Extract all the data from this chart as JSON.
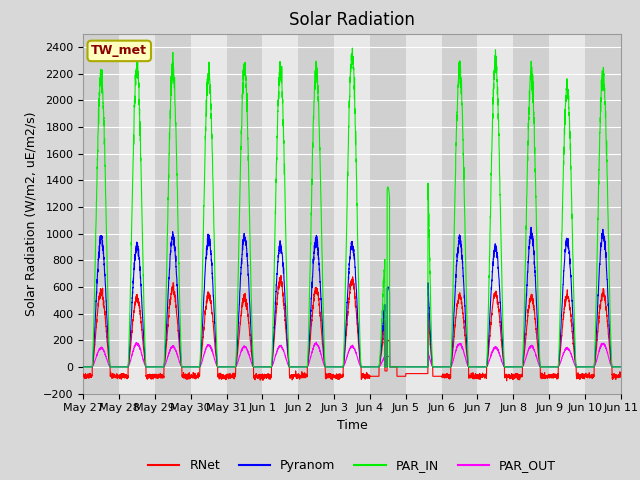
{
  "title": "Solar Radiation",
  "ylabel": "Solar Radiation (W/m2, uE/m2/s)",
  "xlabel": "Time",
  "ylim": [
    -200,
    2500
  ],
  "yticks": [
    -200,
    0,
    200,
    400,
    600,
    800,
    1000,
    1200,
    1400,
    1600,
    1800,
    2000,
    2200,
    2400
  ],
  "station_label": "TW_met",
  "station_label_color": "#8B0000",
  "station_box_facecolor": "#FFFFC0",
  "station_box_edgecolor": "#AAAA00",
  "colors": {
    "RNet": "#FF0000",
    "Pyranom": "#0000FF",
    "PAR_IN": "#00EE00",
    "PAR_OUT": "#FF00FF"
  },
  "legend_labels": [
    "RNet",
    "Pyranom",
    "PAR_IN",
    "PAR_OUT"
  ],
  "fig_facecolor": "#D8D8D8",
  "plot_facecolor": "#E8E8E8",
  "band_light": "#E8E8E8",
  "band_dark": "#D0D0D0",
  "grid_color": "#FFFFFF",
  "n_days": 15,
  "points_per_day": 288,
  "x_tick_labels": [
    "May 27",
    "May 28",
    "May 29",
    "May 30",
    "May 31",
    "Jun 1",
    "Jun 2",
    "Jun 3",
    "Jun 4",
    "Jun 5",
    "Jun 6",
    "Jun 7",
    "Jun 8",
    "Jun 9",
    "Jun 10",
    "Jun 11"
  ],
  "title_fontsize": 12,
  "label_fontsize": 9,
  "tick_fontsize": 8,
  "legend_fontsize": 9
}
